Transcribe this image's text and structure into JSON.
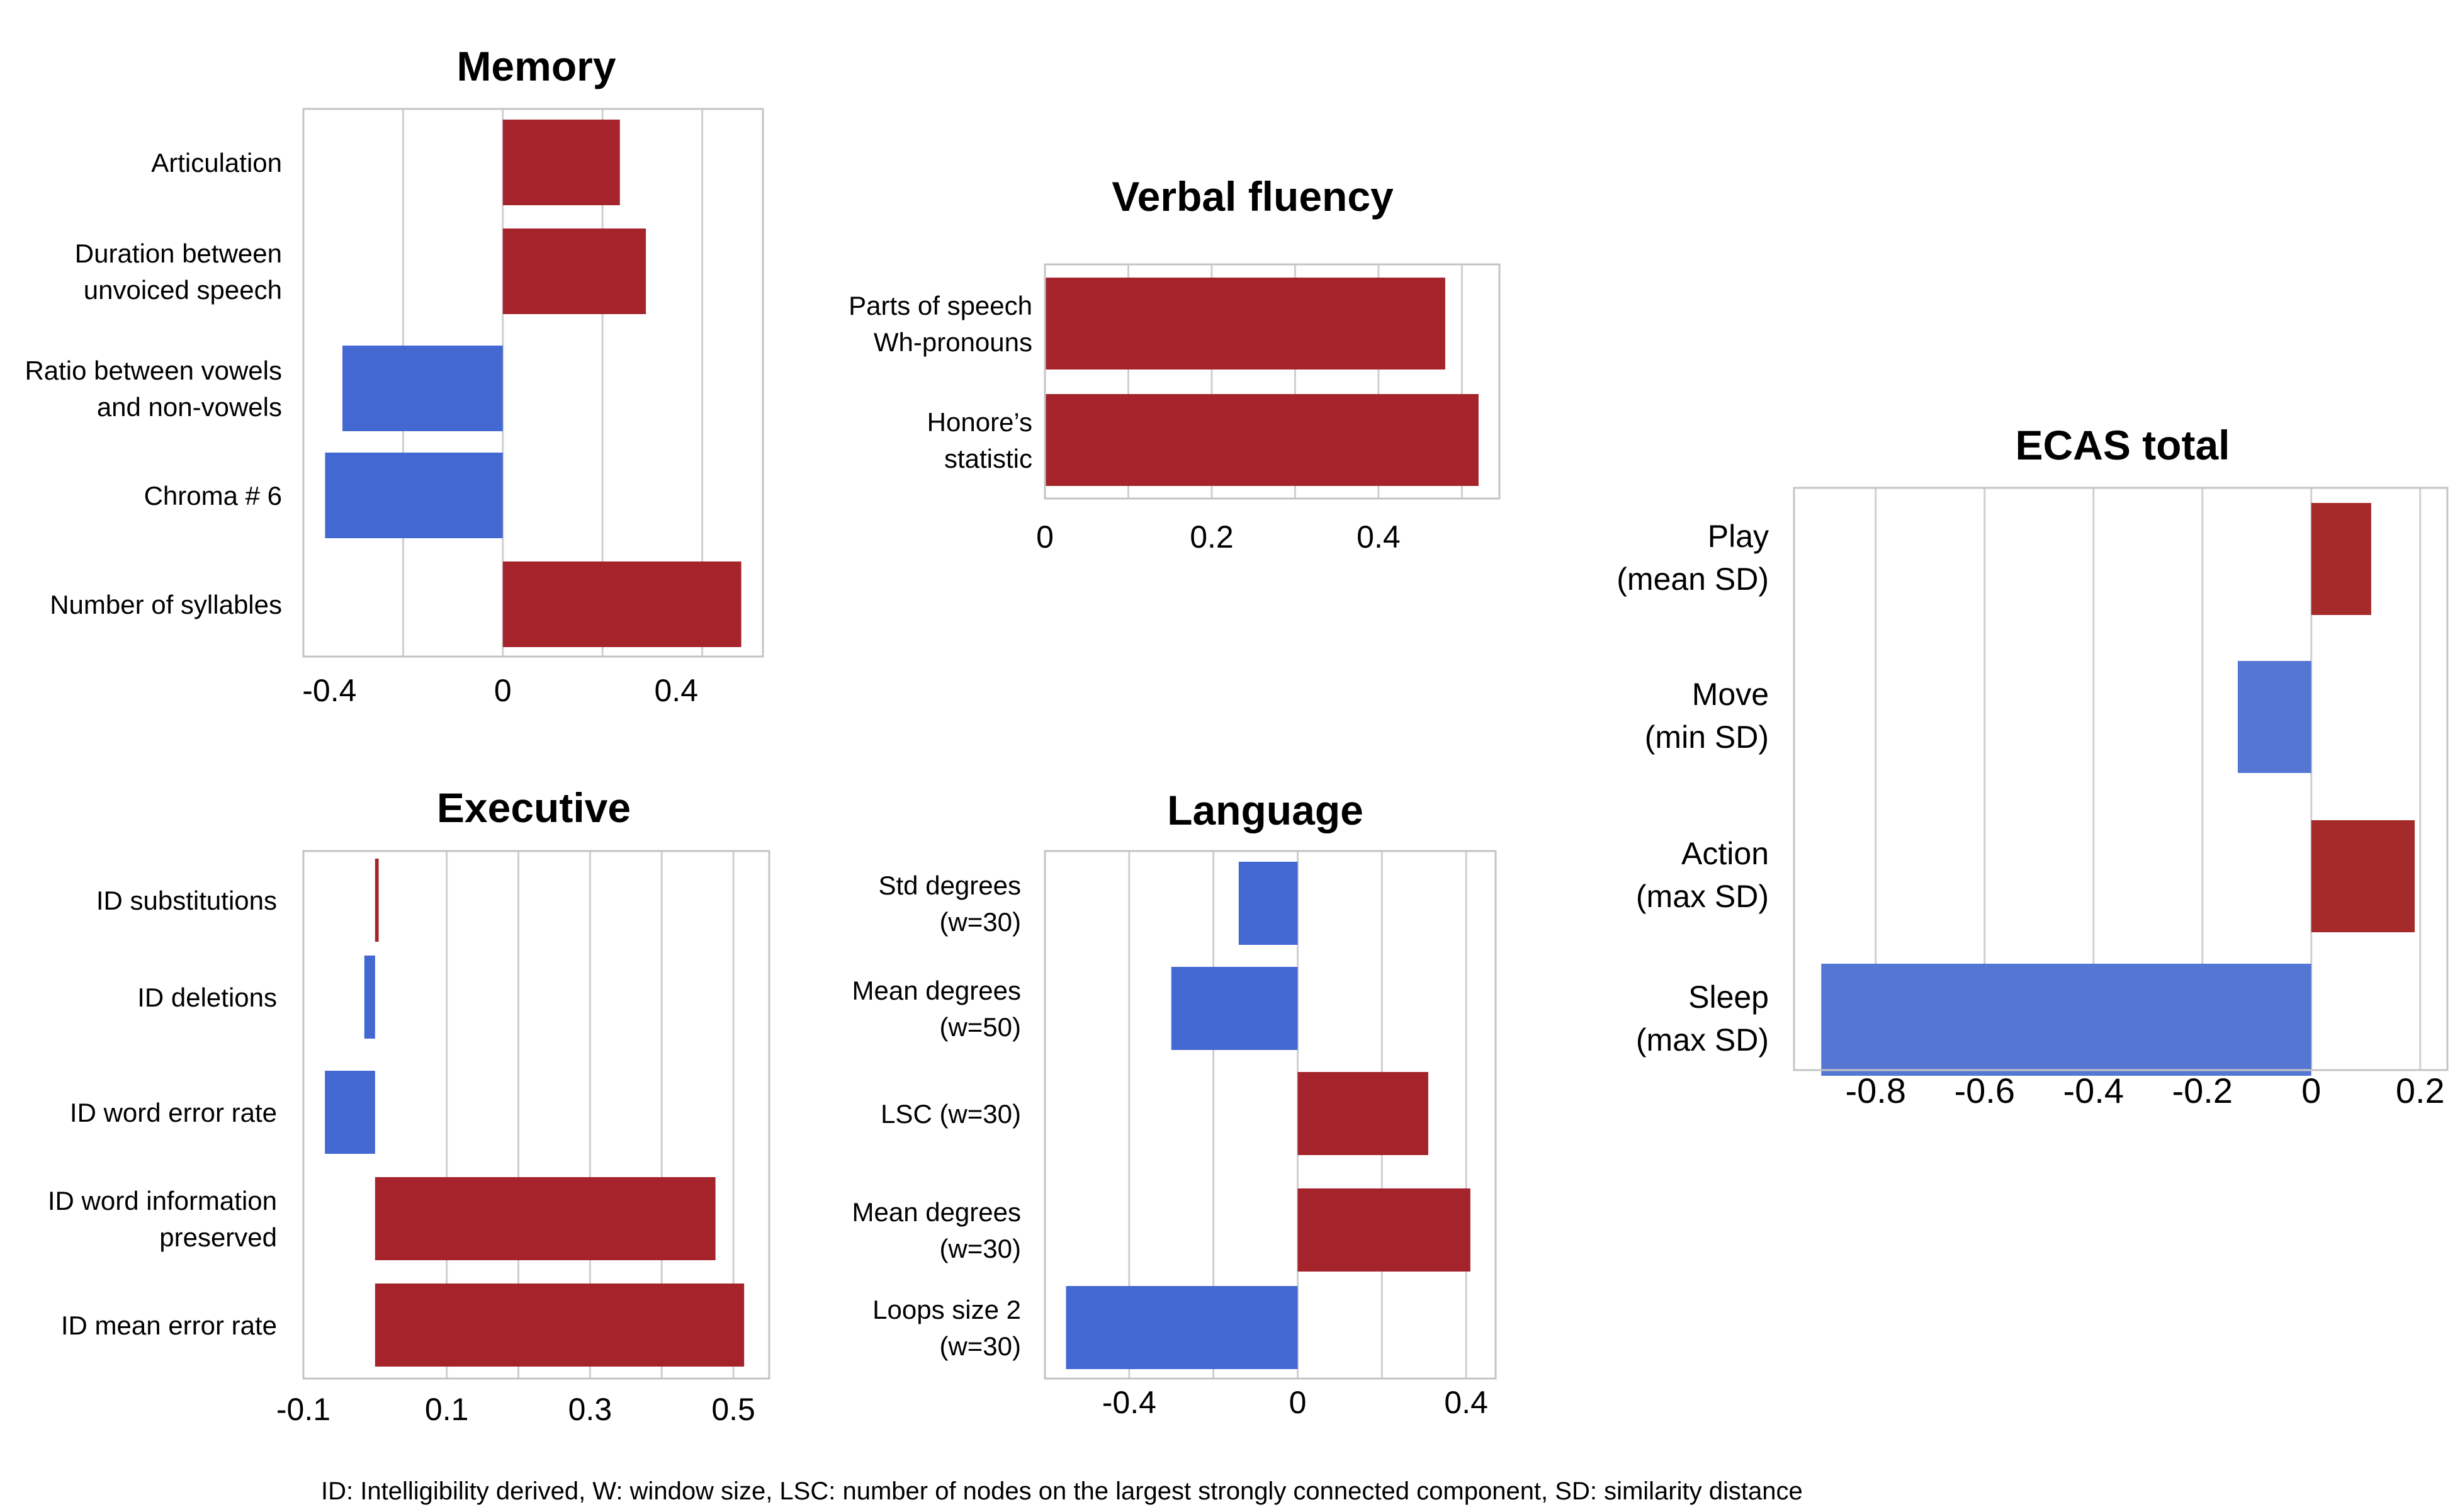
{
  "colors": {
    "positive": "#a5232a",
    "negative": "#4468d2",
    "negative_ecas": "#5576d3",
    "positive_ecas": "#a52a2a"
  },
  "footnote": "ID: Intelligibility derived, W: window size, LSC: number of nodes on the largest strongly connected component, SD: similarity distance",
  "chart_data": [
    {
      "id": "memory",
      "type": "bar",
      "orientation": "horizontal",
      "title": "Memory",
      "categories": [
        [
          "Articulation"
        ],
        [
          "Duration between",
          "unvoiced speech"
        ],
        [
          "Ratio between vowels",
          "and non-vowels"
        ],
        [
          "Chroma # 6"
        ],
        [
          "Number of syllables"
        ]
      ],
      "values": [
        0.27,
        0.33,
        -0.37,
        -0.41,
        0.55
      ],
      "xlim": [
        -0.46,
        0.6
      ],
      "xticks": [
        -0.4,
        0,
        0.4
      ],
      "xtick_labels": [
        "-0.4",
        "0",
        "0.4"
      ],
      "grid": [
        -0.23,
        0,
        0.23,
        0.46
      ]
    },
    {
      "id": "verbal",
      "type": "bar",
      "orientation": "horizontal",
      "title": "Verbal fluency",
      "categories": [
        [
          "Parts of speech",
          "Wh-pronouns"
        ],
        [
          "Honore’s",
          "statistic"
        ]
      ],
      "values": [
        0.48,
        0.52
      ],
      "xlim": [
        0,
        0.545
      ],
      "xticks": [
        0,
        0.2,
        0.4
      ],
      "xtick_labels": [
        "0",
        "0.2",
        "0.4"
      ],
      "grid": [
        0.1,
        0.2,
        0.3,
        0.4,
        0.5
      ]
    },
    {
      "id": "executive",
      "type": "bar",
      "orientation": "horizontal",
      "title": "Executive",
      "categories": [
        [
          "ID substitutions"
        ],
        [
          "ID deletions"
        ],
        [
          "ID word error rate"
        ],
        [
          "ID word information",
          "preserved"
        ],
        [
          "ID mean error rate"
        ]
      ],
      "values": [
        0.005,
        -0.015,
        -0.07,
        0.475,
        0.515
      ],
      "xlim": [
        -0.1,
        0.55
      ],
      "xticks": [
        -0.1,
        0.1,
        0.3,
        0.5
      ],
      "xtick_labels": [
        "-0.1",
        "0.1",
        "0.3",
        "0.5"
      ],
      "grid": [
        0.1,
        0.2,
        0.3,
        0.4,
        0.5
      ]
    },
    {
      "id": "language",
      "type": "bar",
      "orientation": "horizontal",
      "title": "Language",
      "categories": [
        [
          "Std degrees",
          "(w=30)"
        ],
        [
          "Mean degrees",
          "(w=50)"
        ],
        [
          "LSC  (w=30)"
        ],
        [
          "Mean degrees",
          "(w=30)"
        ],
        [
          "Loops size 2",
          "(w=30)"
        ]
      ],
      "values": [
        -0.14,
        -0.3,
        0.31,
        0.41,
        -0.55
      ],
      "xlim": [
        -0.6,
        0.47
      ],
      "xticks": [
        -0.4,
        0,
        0.4
      ],
      "xtick_labels": [
        "-0.4",
        "0",
        "0.4"
      ],
      "grid": [
        -0.4,
        -0.2,
        0,
        0.2,
        0.4
      ]
    },
    {
      "id": "ecas",
      "type": "bar",
      "orientation": "horizontal",
      "title": "ECAS total",
      "categories": [
        [
          "Play",
          "(mean SD)"
        ],
        [
          "Move",
          "(min SD)"
        ],
        [
          "Action",
          "(max SD)"
        ],
        [
          "Sleep",
          "(max SD)"
        ]
      ],
      "values": [
        0.11,
        -0.135,
        0.19,
        -0.9
      ],
      "xlim": [
        -0.95,
        0.25
      ],
      "xticks": [
        -0.8,
        -0.6,
        -0.4,
        -0.2,
        0,
        0.2
      ],
      "xtick_labels": [
        "-0.8",
        "-0.6",
        "-0.4",
        "-0.2",
        "0",
        "0.2"
      ],
      "grid": [
        -0.8,
        -0.6,
        -0.4,
        -0.2,
        0,
        0.2
      ]
    }
  ]
}
